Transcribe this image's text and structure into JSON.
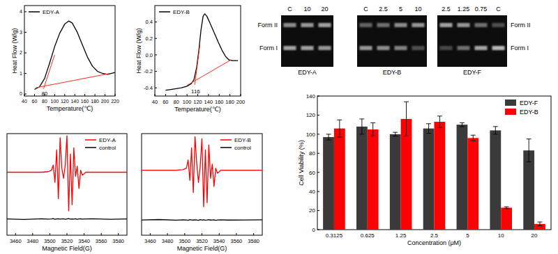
{
  "chart_data": [
    {
      "type": "line",
      "x_label": "Temperature(℃)",
      "y_label": "Heat Flow (W/g)",
      "xlim": [
        40,
        220
      ],
      "ylim": [
        -0.1,
        4.3
      ],
      "xticks": [
        40,
        60,
        80,
        100,
        120,
        140,
        160,
        180,
        200,
        220
      ],
      "yticks": [
        0,
        1,
        2,
        3,
        4
      ],
      "legend": "top-left",
      "series": [
        {
          "name": "EDY-A",
          "color": "#000000",
          "x": [
            60,
            70,
            80,
            90,
            100,
            110,
            120,
            128,
            135,
            145,
            155,
            165,
            175,
            185,
            195,
            205,
            220
          ],
          "values": [
            0.22,
            0.35,
            0.75,
            1.5,
            2.3,
            2.95,
            3.4,
            3.55,
            3.45,
            3.0,
            2.4,
            1.8,
            1.35,
            1.1,
            1.0,
            0.95,
            1.05
          ]
        },
        {
          "color": "#ff2a1a",
          "x": [
            78,
            100
          ],
          "values": [
            0.25,
            1.9
          ]
        },
        {
          "color": "#ff2a1a",
          "x": [
            62,
            210
          ],
          "values": [
            0.3,
            1.0
          ]
        }
      ],
      "annotations": [
        {
          "text": "80",
          "x": 80,
          "y": -0.05
        }
      ]
    },
    {
      "type": "line",
      "x_label": "Temperature(℃)",
      "y_label": "Heat Flow (W/g)",
      "xlim": [
        40,
        200
      ],
      "ylim": [
        -0.5,
        0.6
      ],
      "xticks": [
        40,
        60,
        80,
        100,
        120,
        140,
        160,
        180,
        200
      ],
      "yticks": [
        -0.4,
        -0.2,
        {
          "value": 0,
          "label": "0.0"
        },
        0.2,
        0.4
      ],
      "legend": "top-left",
      "series": [
        {
          "name": "EDY-B",
          "color": "#000000",
          "x": [
            60,
            70,
            80,
            90,
            100,
            108,
            113,
            118,
            122,
            126,
            130,
            133,
            137,
            142,
            150,
            158,
            165,
            172,
            178,
            185,
            195
          ],
          "values": [
            -0.43,
            -0.42,
            -0.41,
            -0.4,
            -0.38,
            -0.35,
            -0.3,
            -0.15,
            0.05,
            0.3,
            0.47,
            0.5,
            0.47,
            0.4,
            0.28,
            0.16,
            0.06,
            -0.02,
            -0.06,
            -0.07,
            -0.07
          ]
        },
        {
          "color": "#ff2a1a",
          "x": [
            114.5,
            124
          ],
          "values": [
            -0.363,
            0.12
          ]
        },
        {
          "color": "#ff2a1a",
          "x": [
            100,
            182
          ],
          "values": [
            -0.37,
            -0.06
          ]
        }
      ],
      "annotations": [
        {
          "text": "116",
          "x": 116,
          "y": -0.47
        }
      ]
    },
    {
      "type": "line",
      "x_label": "Magnetic Field(G)",
      "xlim": [
        3450,
        3590
      ],
      "ylim": [
        0,
        10
      ],
      "xticks": [
        3460,
        3480,
        3500,
        3520,
        3540,
        3560,
        3580
      ],
      "tick_labels": "x",
      "legend": "top-right",
      "x": [
        3450,
        3470,
        3490,
        3498,
        3502,
        3504,
        3506,
        3508,
        3510,
        3512,
        3514,
        3516,
        3518,
        3520,
        3522,
        3524,
        3526,
        3528,
        3530,
        3532,
        3534,
        3536,
        3538,
        3542,
        3550,
        3570,
        3590
      ],
      "series": [
        {
          "name": "EDY-A",
          "color": "#ff0000",
          "values": [
            6.2,
            6.2,
            6.2,
            6.25,
            6.4,
            6.9,
            5.2,
            8.4,
            3.6,
            9.6,
            6.6,
            5.6,
            6.9,
            9.8,
            2.4,
            8.0,
            3.0,
            8.6,
            5.8,
            6.8,
            4.6,
            6.4,
            5.9,
            6.2,
            6.2,
            6.2,
            6.2
          ]
        },
        {
          "name": "control",
          "color": "#000000",
          "values": [
            1.6,
            1.55,
            1.62,
            1.58,
            1.6,
            1.63,
            1.57,
            1.6,
            1.62,
            1.58,
            1.6,
            1.61,
            1.57,
            1.6,
            1.63,
            1.58,
            1.6,
            1.59,
            1.62,
            1.57,
            1.6,
            1.61,
            1.58,
            1.6,
            1.62,
            1.57,
            1.6
          ]
        }
      ]
    },
    {
      "type": "line",
      "x_label": "Magnetic Field(G)",
      "xlim": [
        3450,
        3590
      ],
      "ylim": [
        0,
        10
      ],
      "xticks": [
        3460,
        3480,
        3500,
        3520,
        3540,
        3560,
        3580
      ],
      "tick_labels": "x",
      "legend": "top-right",
      "x": [
        3450,
        3470,
        3490,
        3498,
        3502,
        3504,
        3506,
        3508,
        3510,
        3512,
        3514,
        3516,
        3518,
        3520,
        3522,
        3524,
        3526,
        3528,
        3530,
        3532,
        3534,
        3536,
        3538,
        3542,
        3550,
        3570,
        3590
      ],
      "series": [
        {
          "name": "EDY-B",
          "color": "#ff0000",
          "values": [
            6.4,
            6.4,
            6.4,
            6.45,
            6.6,
            7.4,
            5.4,
            8.6,
            4.2,
            9.7,
            7.0,
            5.2,
            6.8,
            9.5,
            2.8,
            8.4,
            3.2,
            8.9,
            5.6,
            7.0,
            4.8,
            6.6,
            6.1,
            6.4,
            6.4,
            6.4,
            6.4
          ]
        },
        {
          "name": "control",
          "color": "#000000",
          "values": [
            1.5,
            1.54,
            1.48,
            1.52,
            1.5,
            1.47,
            1.53,
            1.5,
            1.49,
            1.52,
            1.5,
            1.46,
            1.53,
            1.5,
            1.51,
            1.48,
            1.5,
            1.53,
            1.49,
            1.5,
            1.52,
            1.47,
            1.5,
            1.51,
            1.49,
            1.5,
            1.52
          ]
        }
      ]
    },
    {
      "type": "bar",
      "x_label": "Concentration (μM)",
      "y_label": "Cell Viability (%)",
      "categories": [
        "0.3125",
        "0.625",
        "1.25",
        "2.5",
        "5",
        "10",
        "20"
      ],
      "ylim": [
        0,
        140
      ],
      "yticks": [
        0,
        20,
        40,
        60,
        80,
        100,
        120,
        140
      ],
      "legend": "top-right",
      "series": [
        {
          "name": "EDY-F",
          "color": "#3a3a3a",
          "values": [
            97,
            108,
            100,
            106,
            110,
            104,
            83
          ],
          "errors": [
            3,
            8,
            2,
            5,
            2,
            4,
            12
          ]
        },
        {
          "name": "EDY-B",
          "color": "#ff0000",
          "values": [
            106,
            105,
            116,
            113,
            96,
            23,
            6
          ],
          "errors": [
            9,
            7,
            18,
            6,
            3,
            1,
            2
          ]
        }
      ]
    }
  ],
  "gel": {
    "panels": [
      {
        "name": "EDY-A",
        "lanes": [
          "C",
          "10",
          "20"
        ]
      },
      {
        "name": "EDY-B",
        "lanes": [
          "C",
          "2.5",
          "5",
          "10"
        ]
      },
      {
        "name": "EDY-F",
        "lanes": [
          "2.5",
          "1.25",
          "0.75",
          "C"
        ]
      }
    ],
    "left_labels": [
      "Form II",
      "Form I"
    ],
    "right_labels": [
      "Form II",
      "Form I"
    ]
  }
}
